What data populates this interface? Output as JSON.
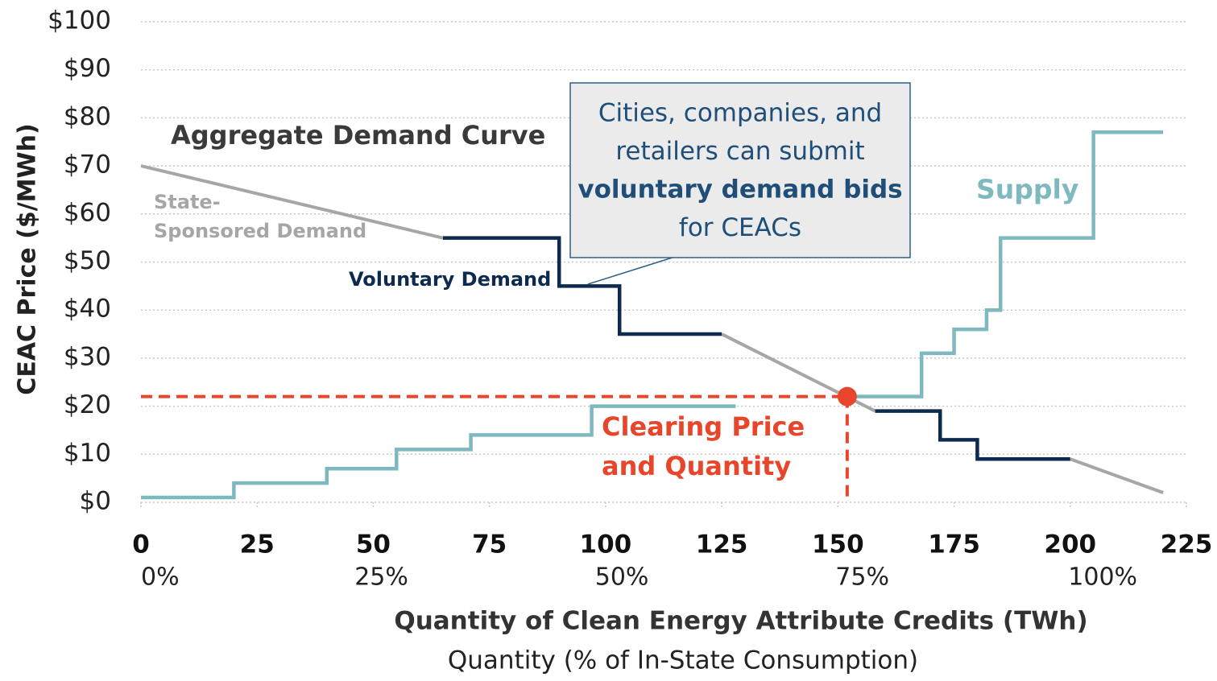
{
  "chart_data": {
    "type": "line",
    "title": "Aggregate Demand Curve",
    "x_label": "Quantity of Clean Energy Attribute Credits (TWh)",
    "x2_label": "Quantity (% of In-State Consumption)",
    "y_label": "CEAC Price ($/MWh)",
    "xlim": [
      0,
      225
    ],
    "ylim": [
      0,
      100
    ],
    "xticks": [
      0,
      25,
      50,
      75,
      100,
      125,
      150,
      175,
      200,
      225
    ],
    "x2ticks": [
      {
        "value": 0,
        "label": "0%"
      },
      {
        "value": 51.75,
        "label": "25%"
      },
      {
        "value": 103.5,
        "label": "50%"
      },
      {
        "value": 155.25,
        "label": "75%"
      },
      {
        "value": 207,
        "label": "100%"
      }
    ],
    "yticks": [
      {
        "value": 0,
        "label": "$0"
      },
      {
        "value": 10,
        "label": "$10"
      },
      {
        "value": 20,
        "label": "$20"
      },
      {
        "value": 30,
        "label": "$30"
      },
      {
        "value": 40,
        "label": "$40"
      },
      {
        "value": 50,
        "label": "$50"
      },
      {
        "value": 60,
        "label": "$60"
      },
      {
        "value": 70,
        "label": "$70"
      },
      {
        "value": 80,
        "label": "$80"
      },
      {
        "value": 90,
        "label": "$90"
      },
      {
        "value": 100,
        "label": "$100"
      }
    ],
    "grid": true,
    "series": [
      {
        "name": "State-Sponsored Demand",
        "color": "#a6a6a6",
        "x": [
          0,
          65,
          null,
          125,
          158,
          null,
          200,
          220
        ],
        "values": [
          70,
          55,
          null,
          35,
          19,
          null,
          9,
          2
        ]
      },
      {
        "name": "Voluntary Demand",
        "color": "#0d2a4f",
        "x": [
          65,
          90,
          90,
          103,
          103,
          125,
          null,
          158,
          172,
          172,
          180,
          180,
          200
        ],
        "values": [
          55,
          55,
          45,
          45,
          35,
          35,
          null,
          19,
          19,
          13,
          13,
          9,
          9
        ]
      },
      {
        "name": "Supply",
        "color": "#7fb9c0",
        "x": [
          0,
          20,
          20,
          40,
          40,
          55,
          55,
          71,
          71,
          97,
          97,
          128,
          null,
          152,
          168,
          168,
          175,
          175,
          182,
          182,
          185,
          185,
          205,
          205,
          220
        ],
        "values": [
          1,
          1,
          4,
          4,
          7,
          7,
          11,
          11,
          14,
          14,
          20,
          20,
          null,
          22,
          22,
          31,
          31,
          36,
          36,
          40,
          40,
          55,
          55,
          77,
          77
        ]
      }
    ],
    "clearing": {
      "x": 152,
      "value": 22,
      "color": "#e8452a",
      "label": [
        "Clearing Price",
        "and Quantity"
      ]
    },
    "callout": {
      "lines": [
        {
          "text": "Cities, companies, and",
          "bold": false
        },
        {
          "text": "retailers can submit",
          "bold": false
        },
        {
          "text": "voluntary demand bids",
          "bold": true
        },
        {
          "text": "for CEACs",
          "bold": false
        }
      ]
    }
  }
}
